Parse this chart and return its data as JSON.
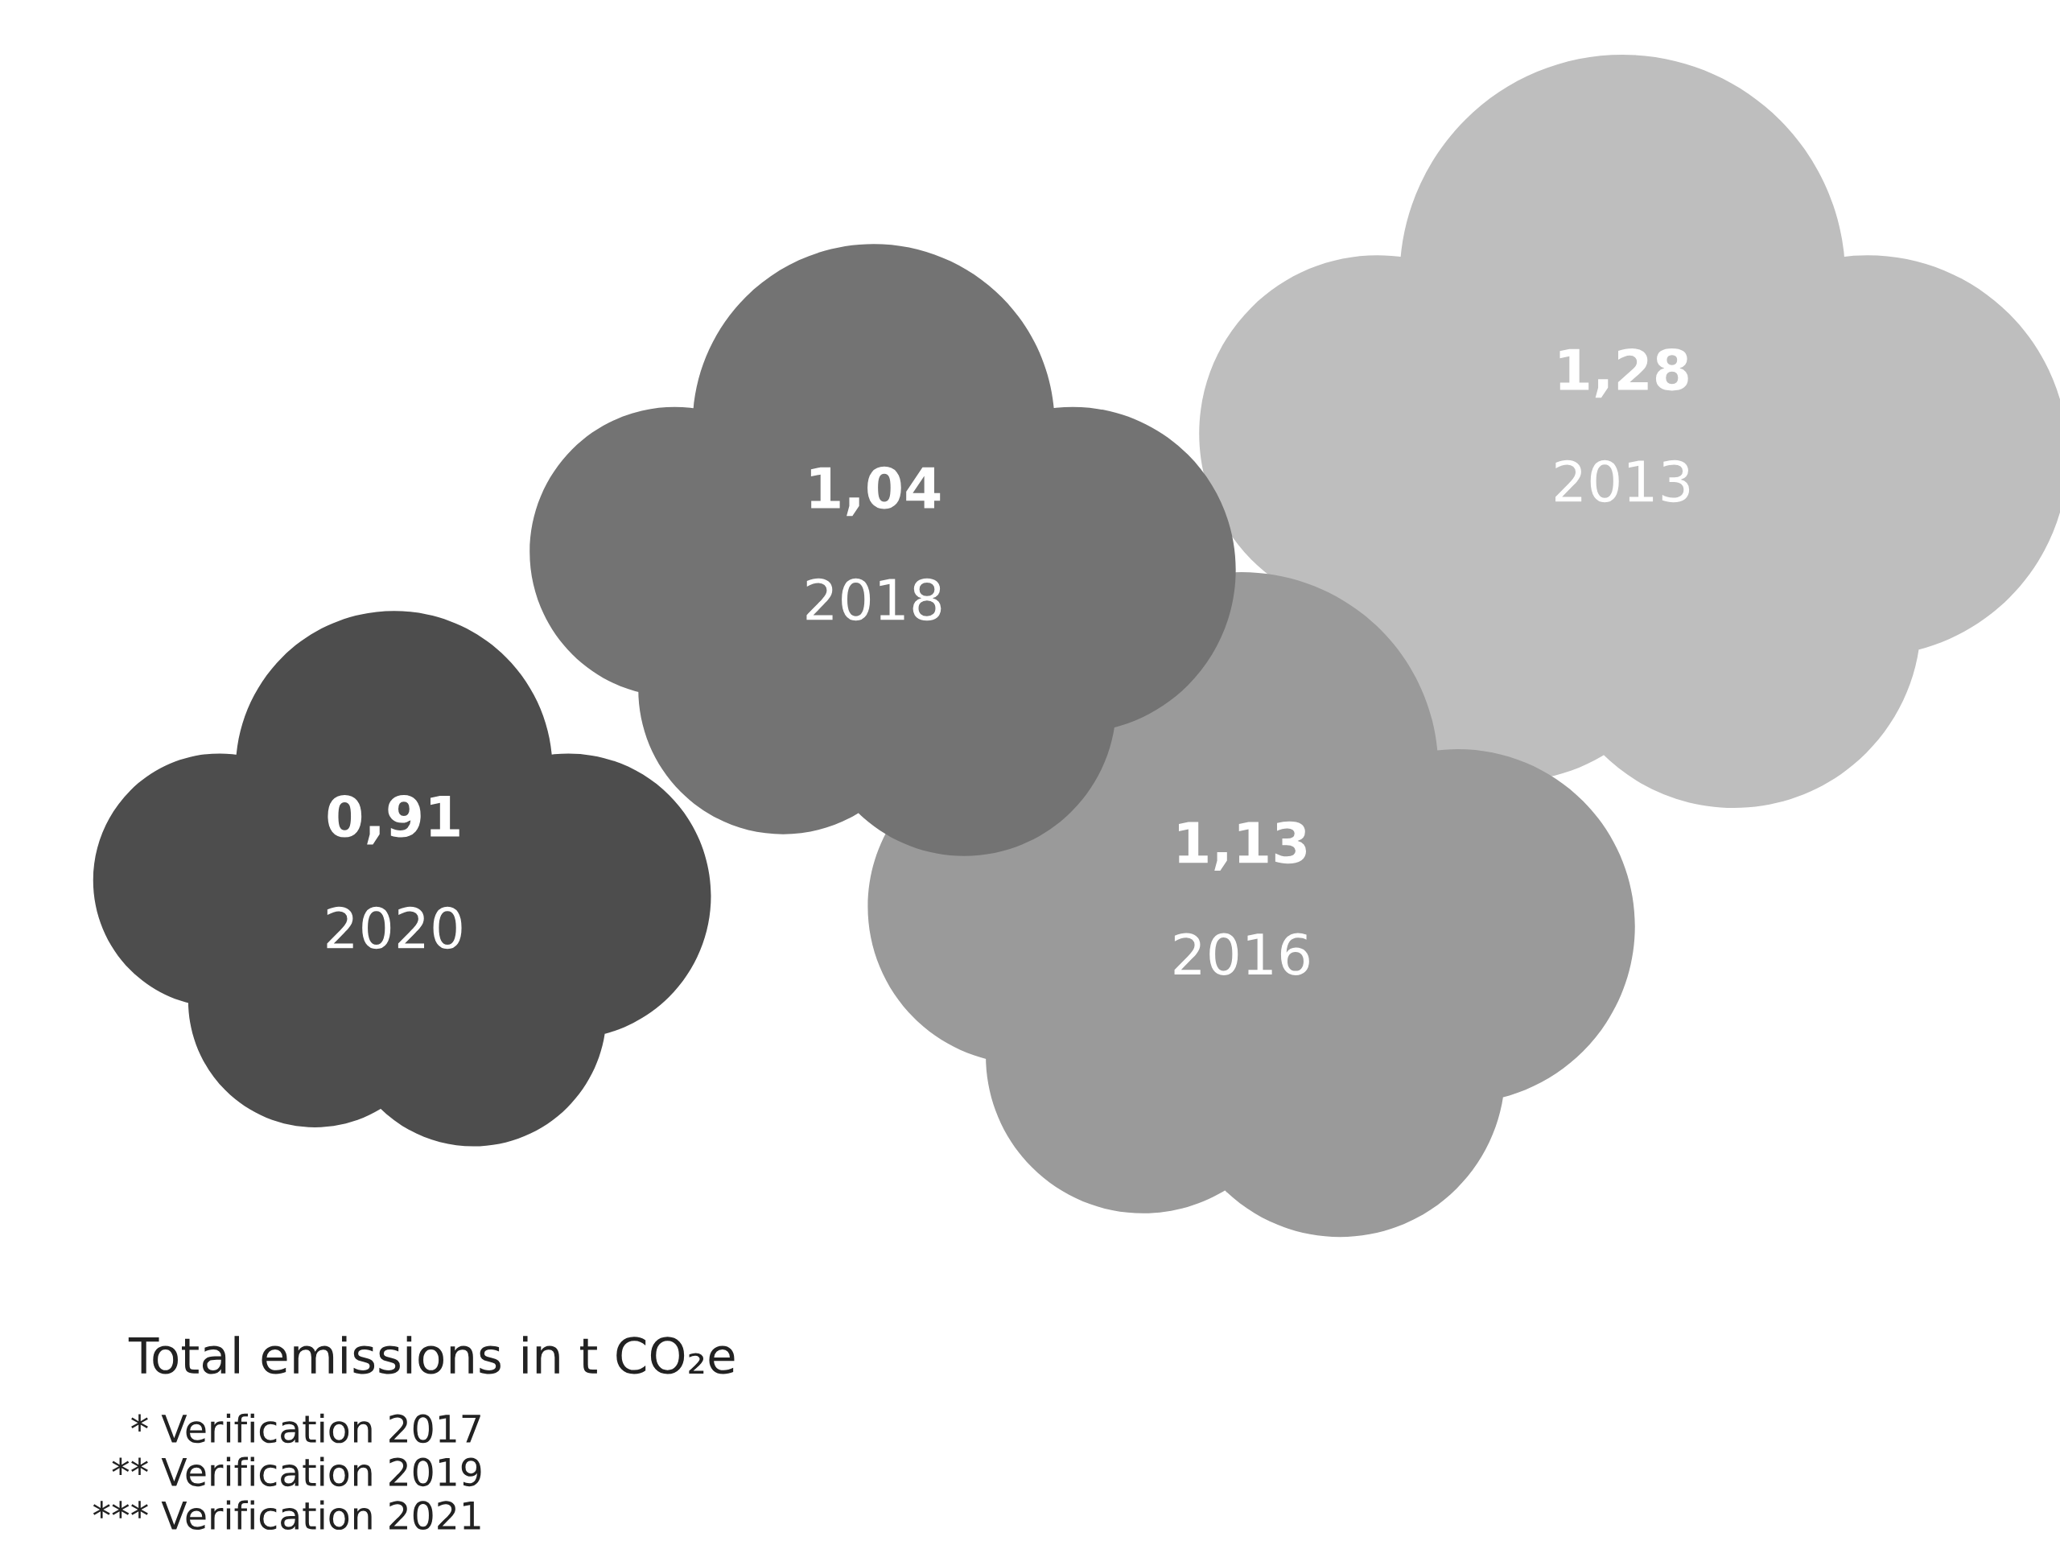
{
  "chart_data": {
    "type": "other",
    "title": "Total emissions in t CO₂e",
    "categories": [
      "2013",
      "2016",
      "2018",
      "2020"
    ],
    "values": [
      1.28,
      1.13,
      1.04,
      0.91
    ],
    "value_labels": [
      "1,28",
      "1,13",
      "1,04",
      "0,91"
    ],
    "colors": [
      "#bebebe",
      "#9a9a9a",
      "#737373",
      "#4d4d4d"
    ],
    "annotations": [
      "* Verification 2017",
      "** Verification 2019",
      "*** Verification 2021"
    ]
  }
}
